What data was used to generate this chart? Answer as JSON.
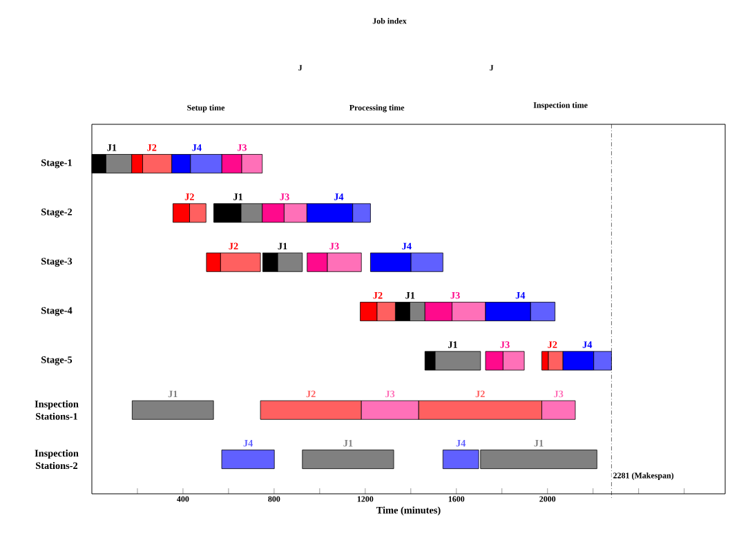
{
  "chart_data": {
    "type": "bar",
    "orientation": "horizontal",
    "xlabel": "Time (minutes)",
    "legend": false,
    "categories": [
      "Stage-1",
      "Stage-2",
      "Stage-3",
      "Stage-4",
      "Stage-5",
      "Inspection Stations-1",
      "Inspection Stations-2"
    ],
    "xlim": [
      0,
      2780
    ],
    "xticks": [
      {
        "value": 200,
        "label": null
      },
      400,
      {
        "value": 600,
        "label": null
      },
      800,
      {
        "value": 1000,
        "label": null
      },
      1200,
      {
        "value": 1400,
        "label": null
      },
      1600,
      {
        "value": 1800,
        "label": null
      },
      2000,
      {
        "value": 2200,
        "label": null
      },
      {
        "value": 2400,
        "label": null
      },
      {
        "value": 2600,
        "label": null
      }
    ],
    "series": [
      {
        "name": "J1",
        "color": "#000000",
        "base": [
          0,
          535,
          750,
          1332,
          1462,
          null,
          null
        ],
        "values": [
          62,
          120,
          66,
          64,
          45,
          null,
          null
        ]
      },
      {
        "name": "J1",
        "color": "#808080",
        "base": [
          62,
          655,
          816,
          1396,
          1507,
          177,
          924
        ],
        "values": [
          113,
          93,
          108,
          66,
          199,
          357,
          401
        ]
      },
      {
        "name": "J1",
        "color": "#808080",
        "base": [
          null,
          null,
          null,
          null,
          null,
          null,
          1706
        ],
        "values": [
          null,
          null,
          null,
          null,
          null,
          null,
          511
        ]
      },
      {
        "name": "J2",
        "color": "#ff0000",
        "base": [
          175,
          356,
          503,
          1178,
          1975,
          null,
          null
        ],
        "values": [
          48,
          73,
          62,
          74,
          29,
          null,
          null
        ]
      },
      {
        "name": "J2",
        "color": "#ff6060",
        "base": [
          223,
          429,
          565,
          1252,
          2004,
          740,
          null
        ],
        "values": [
          128,
          72,
          175,
          80,
          64,
          443,
          null
        ]
      },
      {
        "name": "J2",
        "color": "#ff6060",
        "base": [
          null,
          null,
          null,
          null,
          null,
          1434,
          null
        ],
        "values": [
          null,
          null,
          null,
          null,
          null,
          541,
          null
        ]
      },
      {
        "name": "J3",
        "color": "#ff0a8c",
        "base": [
          570,
          748,
          945,
          1462,
          1728,
          null,
          null
        ],
        "values": [
          88,
          96,
          89,
          119,
          77,
          null,
          null
        ]
      },
      {
        "name": "J3",
        "color": "#ff70b8",
        "base": [
          658,
          844,
          1034,
          1581,
          1805,
          1183,
          null
        ],
        "values": [
          90,
          100,
          149,
          147,
          93,
          251,
          null
        ]
      },
      {
        "name": "J3",
        "color": "#ff70b8",
        "base": [
          null,
          null,
          null,
          null,
          null,
          1975,
          null
        ],
        "values": [
          null,
          null,
          null,
          null,
          null,
          147,
          null
        ]
      },
      {
        "name": "J4",
        "color": "#0000ff",
        "base": [
          351,
          944,
          1223,
          1728,
          2068,
          null,
          null
        ],
        "values": [
          82,
          201,
          178,
          198,
          135,
          null,
          null
        ]
      },
      {
        "name": "J4",
        "color": "#6060ff",
        "base": [
          433,
          1145,
          1401,
          1926,
          2203,
          null,
          570
        ],
        "values": [
          137,
          78,
          140,
          107,
          78,
          null,
          231
        ]
      },
      {
        "name": "J4",
        "color": "#6060ff",
        "base": [
          null,
          null,
          null,
          null,
          null,
          null,
          1541
        ],
        "values": [
          null,
          null,
          null,
          null,
          null,
          null,
          157
        ]
      }
    ],
    "ref_lines": [
      {
        "axis": "x",
        "value": 2281,
        "label": "2281 (Makespan)",
        "line_style": "dashed"
      }
    ],
    "annotations": [
      "Job index",
      "J",
      "J",
      "Setup time",
      "Processing time",
      "Inspection time"
    ]
  }
}
